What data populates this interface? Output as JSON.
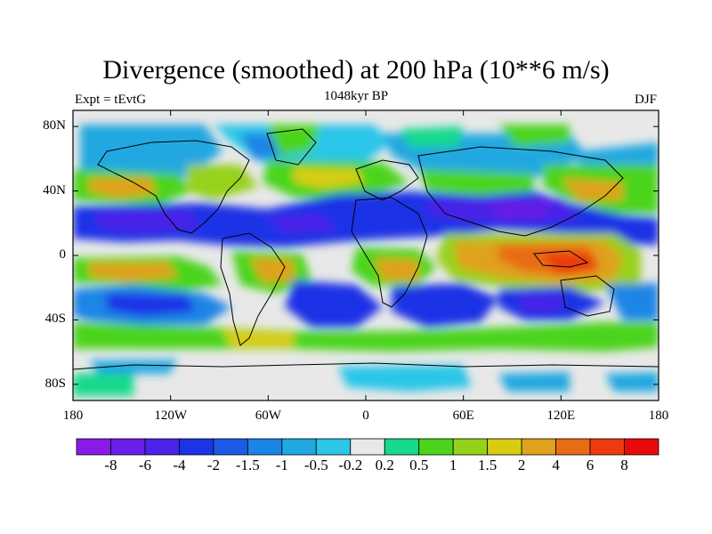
{
  "title": "Divergence (smoothed) at 200 hPa (10**6 m/s)",
  "left_string": "Expt = tEvtG",
  "center_string": "1048kyr BP",
  "right_string": "DJF",
  "lat_ticks": [
    {
      "label": "80N",
      "value": 80
    },
    {
      "label": "40N",
      "value": 40
    },
    {
      "label": "0",
      "value": 0
    },
    {
      "label": "40S",
      "value": -40
    },
    {
      "label": "80S",
      "value": -80
    }
  ],
  "lon_ticks": [
    {
      "label": "180",
      "value": -180
    },
    {
      "label": "120W",
      "value": -120
    },
    {
      "label": "60W",
      "value": -60
    },
    {
      "label": "0",
      "value": 0
    },
    {
      "label": "60E",
      "value": 60
    },
    {
      "label": "120E",
      "value": 120
    },
    {
      "label": "180",
      "value": 180
    }
  ],
  "colorbar": {
    "labels": [
      "-8",
      "-6",
      "-4",
      "-2",
      "-1.5",
      "-1",
      "-0.5",
      "-0.2",
      "0.2",
      "0.5",
      "1",
      "1.5",
      "2",
      "4",
      "6",
      "8"
    ],
    "colors": [
      "#8a1ae6",
      "#6a1ee6",
      "#4a23e8",
      "#1f33e6",
      "#1a5ae6",
      "#1a85e6",
      "#22a8e0",
      "#2cc6e8",
      "#e8e8e8",
      "#17d98c",
      "#4cd41c",
      "#96d11a",
      "#d8cc12",
      "#e0a11c",
      "#e86c14",
      "#ed3a0f",
      "#e80a0a"
    ]
  }
}
